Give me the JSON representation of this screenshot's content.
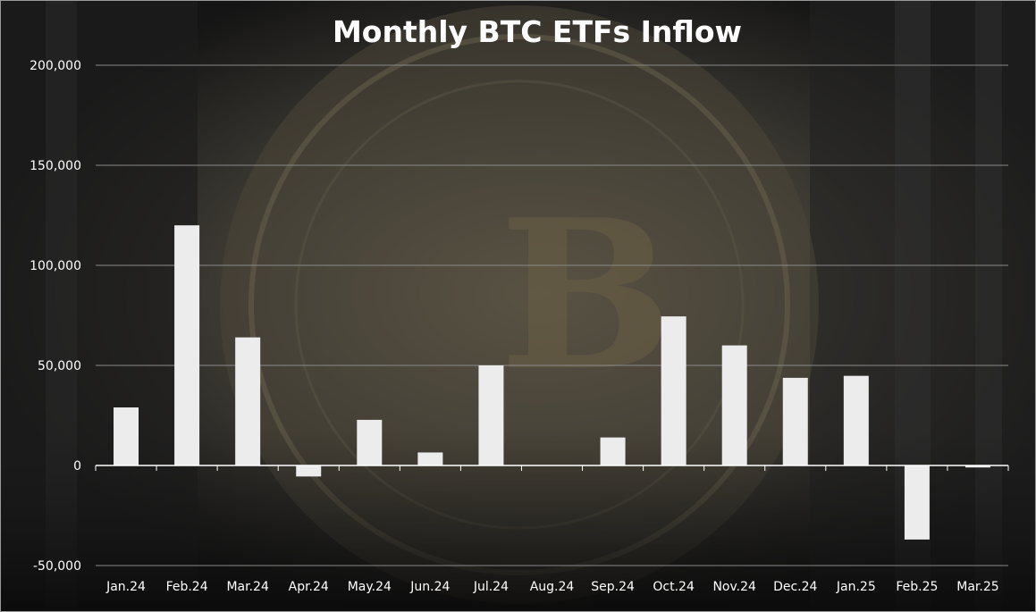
{
  "chart_data": {
    "type": "bar",
    "title": "Monthly BTC ETFs Inflow",
    "categories": [
      "Jan.24",
      "Feb.24",
      "Mar.24",
      "Apr.24",
      "May.24",
      "Jun.24",
      "Jul.24",
      "Aug.24",
      "Sep.24",
      "Oct.24",
      "Nov.24",
      "Dec.24",
      "Jan.25",
      "Feb.25",
      "Mar.25"
    ],
    "values": [
      29000,
      120000,
      64000,
      -5500,
      22800,
      6500,
      50000,
      0,
      14000,
      74500,
      60000,
      43800,
      44800,
      -37000,
      -1000
    ],
    "ylim": [
      -50000,
      200000
    ],
    "yticks": [
      -50000,
      0,
      50000,
      100000,
      150000,
      200000
    ],
    "ytick_labels": [
      "-50,000",
      "0",
      "50,000",
      "100,000",
      "150,000",
      "200,000"
    ],
    "grid": true,
    "colors": {
      "bar": "#ececec",
      "grid": "#8a8a8a",
      "axis": "#ffffff",
      "text": "#ffffff"
    }
  }
}
